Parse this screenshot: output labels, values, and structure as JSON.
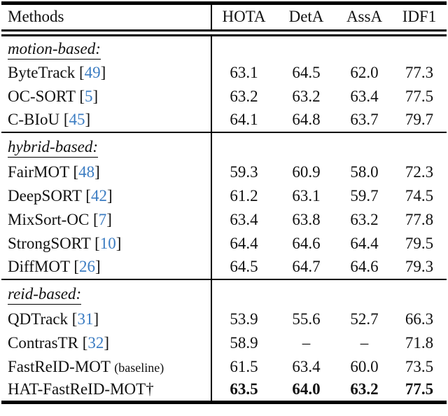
{
  "colors": {
    "citation": "#3b7cc2"
  },
  "table": {
    "header": {
      "method": "Methods",
      "cols": [
        "HOTA",
        "DetA",
        "AssA",
        "IDF1"
      ]
    },
    "sections": [
      {
        "label": "motion-based:",
        "rows": [
          {
            "pre": "ByteTrack [",
            "cite": "49",
            "post": "]",
            "values": [
              "63.1",
              "64.5",
              "62.0",
              "77.3"
            ]
          },
          {
            "pre": "OC-SORT [",
            "cite": "5",
            "post": "]",
            "values": [
              "63.2",
              "63.2",
              "63.4",
              "77.5"
            ]
          },
          {
            "pre": "C-BIoU [",
            "cite": "45",
            "post": "]",
            "values": [
              "64.1",
              "64.8",
              "63.7",
              "79.7"
            ]
          }
        ]
      },
      {
        "label": "hybrid-based:",
        "rows": [
          {
            "pre": "FairMOT [",
            "cite": "48",
            "post": "]",
            "values": [
              "59.3",
              "60.9",
              "58.0",
              "72.3"
            ]
          },
          {
            "pre": "DeepSORT [",
            "cite": "42",
            "post": "]",
            "values": [
              "61.2",
              "63.1",
              "59.7",
              "74.5"
            ]
          },
          {
            "pre": "MixSort-OC [",
            "cite": "7",
            "post": "]",
            "values": [
              "63.4",
              "63.8",
              "63.2",
              "77.8"
            ]
          },
          {
            "pre": "StrongSORT [",
            "cite": "10",
            "post": "]",
            "values": [
              "64.4",
              "64.6",
              "64.4",
              "79.5"
            ]
          },
          {
            "pre": "DiffMOT [",
            "cite": "26",
            "post": "]",
            "values": [
              "64.5",
              "64.7",
              "64.6",
              "79.3"
            ]
          }
        ]
      },
      {
        "label": "reid-based:",
        "rows": [
          {
            "pre": "QDTrack [",
            "cite": "31",
            "post": "]",
            "values": [
              "53.9",
              "55.6",
              "52.7",
              "66.3"
            ]
          },
          {
            "pre": "ContrasTR [",
            "cite": "32",
            "post": "]",
            "values": [
              "58.9",
              "–",
              "–",
              "71.8"
            ]
          },
          {
            "pre": "FastReID-MOT ",
            "note": "(baseline)",
            "values": [
              "61.5",
              "63.4",
              "60.0",
              "73.5"
            ]
          },
          {
            "pre": "HAT-FastReID-MOT†",
            "values": [
              "63.5",
              "64.0",
              "63.2",
              "77.5"
            ]
          }
        ]
      }
    ]
  }
}
